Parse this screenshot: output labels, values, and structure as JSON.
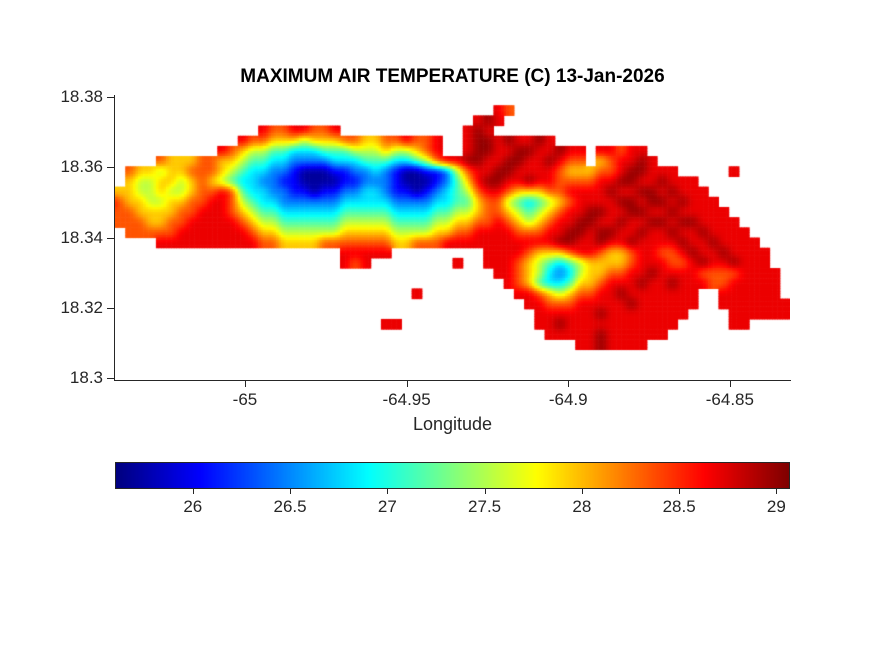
{
  "chart_data": {
    "type": "heatmap",
    "title": "MAXIMUM AIR TEMPERATURE (C) 13-Jan-2026",
    "xlabel": "Longitude",
    "value_name": "maximum air temperature (C)",
    "x_range": [
      -65.0402,
      -64.8314
    ],
    "y_range": [
      18.2994,
      18.3806
    ],
    "x_tick_values": [
      -65,
      -64.95,
      -64.9,
      -64.85
    ],
    "x_tick_labels": [
      "-65",
      "-64.95",
      "-64.9",
      "-64.85"
    ],
    "y_tick_values": [
      18.38,
      18.36,
      18.34,
      18.32,
      18.3
    ],
    "y_tick_labels": [
      "18.38",
      "18.36",
      "18.34",
      "18.32",
      "18.3"
    ],
    "colorbar": {
      "colormap": "jet",
      "cmin": 25.6,
      "cmax": 29.07,
      "tick_values": [
        26,
        26.5,
        27,
        27.5,
        28,
        28.5,
        29
      ],
      "tick_labels": [
        "26",
        "26.5",
        "27",
        "27.5",
        "28",
        "28.5",
        "29"
      ]
    },
    "grid": {
      "n_cols": 66,
      "n_rows": 28,
      "water_char": ".",
      "levels": {
        "1": 25.7,
        "2": 26.05,
        "3": 26.45,
        "4": 26.8,
        "5": 27.15,
        "6": 27.55,
        "7": 27.95,
        "8": 28.35,
        "9": 28.7,
        "A": 29.0
      },
      "rows": [
        "",
        ".....................................98",
        "...................................9A9",
        "..............98899889............9A9",
        "............98877767778877889889..9AA9A99A9",
        "..........9876655444555666766789..9AA99AA99A99.99899",
        "....877788776554433334445554456899AA99AA99A988.7899A9",
        ".877677888765443321112233432112236899AA99998777889AA999.....9",
        ".76677678765443322111122333211123579AA99A99888899AA99A999",
        "776676678898544332212233443221234568998777889999A99AA9A999",
        "8776677889986544333333444443333445578865456789999AA9AA9A999",
        "8877778899987655444444555554444556678876567899AA99AA99A99999",
        "888778899999876655555566666555566778898767899AA99A99AA9AA9999",
        ".8888899999998776666667777766667788999988899AA9AA99A99A99A9999",
        "....999999999988777788888887788899999999999AA99A99A9999A99A9999",
        "......................99999.........99998777899877899889A99A9999",
        "......................989........9..999876545677778999889A99A999",
        ".....................................998764346778899A999988889999",
        "......................................9875445778999A99A9998899999",
        ".............................9.........9987678899A9999999..999999",
        "........................................9988899999A999999..9999999",
        ".........................................999999A99999999....999999",
        "..........................99.............99A99999999999.....99",
        "..........................................99999A999999",
        ".............................................99A9999",
        "",
        "",
        ""
      ]
    }
  },
  "colors": {
    "background": "#ffffff",
    "axis": "#262626",
    "title_text": "#000000",
    "tick_text": "#262626"
  }
}
